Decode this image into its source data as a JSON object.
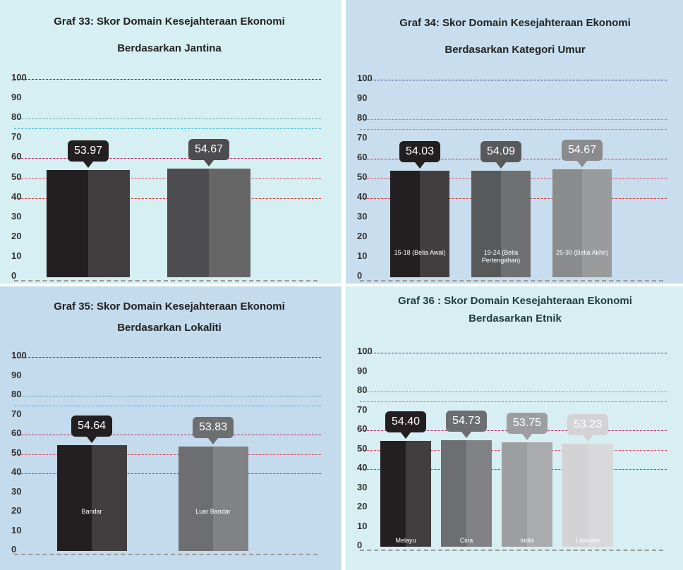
{
  "chart_data": [
    {
      "type": "bar",
      "title": "Graf 33: Skor Domain Kesejahteraan Ekonomi Berdasarkan Jantina",
      "values": [
        53.97,
        54.67
      ],
      "colors": [
        "#231f20",
        "#4d4d4f"
      ],
      "ylim": [
        0,
        100
      ],
      "yticks": [
        0,
        10,
        20,
        30,
        40,
        50,
        60,
        70,
        80,
        90,
        100
      ],
      "ref_lines": [
        {
          "value": 100,
          "color": "#2e3a87"
        },
        {
          "value": 80,
          "color": "#5fa7a8"
        },
        {
          "value": 75,
          "color": "#29b6d6"
        },
        {
          "value": 60,
          "color": "#c2185b"
        },
        {
          "value": 50,
          "color": "#e0455a"
        },
        {
          "value": 40,
          "color": "#d32f2f"
        }
      ]
    },
    {
      "type": "bar",
      "title": "Graf 34: Skor Domain Kesejahteraan Ekonomi Berdasarkan Kategori Umur",
      "categories": [
        "15-18 (Belia Awal)",
        "19-24 (Belia Pertengahan)",
        "25-30 (Belia Akhir)"
      ],
      "values": [
        54.03,
        54.09,
        54.67
      ],
      "colors": [
        "#231f20",
        "#58595b",
        "#8a8b8d"
      ],
      "ylim": [
        0,
        100
      ],
      "yticks": [
        0,
        10,
        20,
        30,
        40,
        50,
        60,
        70,
        80,
        90,
        100
      ],
      "ref_lines": [
        {
          "value": 100,
          "color": "#2e3a87"
        },
        {
          "value": 80,
          "color": "#5fa7a8"
        },
        {
          "value": 75,
          "color": "#29b6d6"
        },
        {
          "value": 60,
          "color": "#c2185b"
        },
        {
          "value": 50,
          "color": "#e0455a"
        },
        {
          "value": 40,
          "color": "#d32f2f"
        }
      ]
    },
    {
      "type": "bar",
      "title": "Graf 35: Skor Domain Kesejahteraan Ekonomi Berdasarkan Lokaliti",
      "categories": [
        "Bandar",
        "Luar Bandar"
      ],
      "values": [
        54.64,
        53.83
      ],
      "colors": [
        "#231f20",
        "#6d6e70"
      ],
      "ylim": [
        0,
        100
      ],
      "yticks": [
        0,
        10,
        20,
        30,
        40,
        50,
        60,
        70,
        80,
        90,
        100
      ],
      "ref_lines": [
        {
          "value": 100,
          "color": "#2e3a87"
        },
        {
          "value": 80,
          "color": "#5fa7a8"
        },
        {
          "value": 75,
          "color": "#29b6d6"
        },
        {
          "value": 60,
          "color": "#c2185b"
        },
        {
          "value": 50,
          "color": "#e0455a"
        },
        {
          "value": 40,
          "color": "#d32f2f"
        }
      ]
    },
    {
      "type": "bar",
      "title": "Graf 36 : Skor Domain Kesejahteraan Ekonomi Berdasarkan Etnik",
      "categories": [
        "Melayu",
        "Cina",
        "India",
        "Lain-lain"
      ],
      "values": [
        54.4,
        54.73,
        53.75,
        53.23
      ],
      "value_labels": [
        "54.40",
        "54.73",
        "53.75",
        "53.23"
      ],
      "colors": [
        "#231f20",
        "#6d6e71",
        "#9d9ea0",
        "#d3d3d5"
      ],
      "ylim": [
        0,
        100
      ],
      "yticks": [
        0,
        10,
        20,
        30,
        40,
        50,
        60,
        70,
        80,
        90,
        100
      ],
      "ref_lines": [
        {
          "value": 100,
          "color": "#2e3a87"
        },
        {
          "value": 80,
          "color": "#5fa7a8"
        },
        {
          "value": 75,
          "color": "#29b6d6"
        },
        {
          "value": 60,
          "color": "#c2185b"
        },
        {
          "value": 50,
          "color": "#e0455a"
        },
        {
          "value": 40,
          "color": "#d32f2f"
        }
      ]
    }
  ]
}
